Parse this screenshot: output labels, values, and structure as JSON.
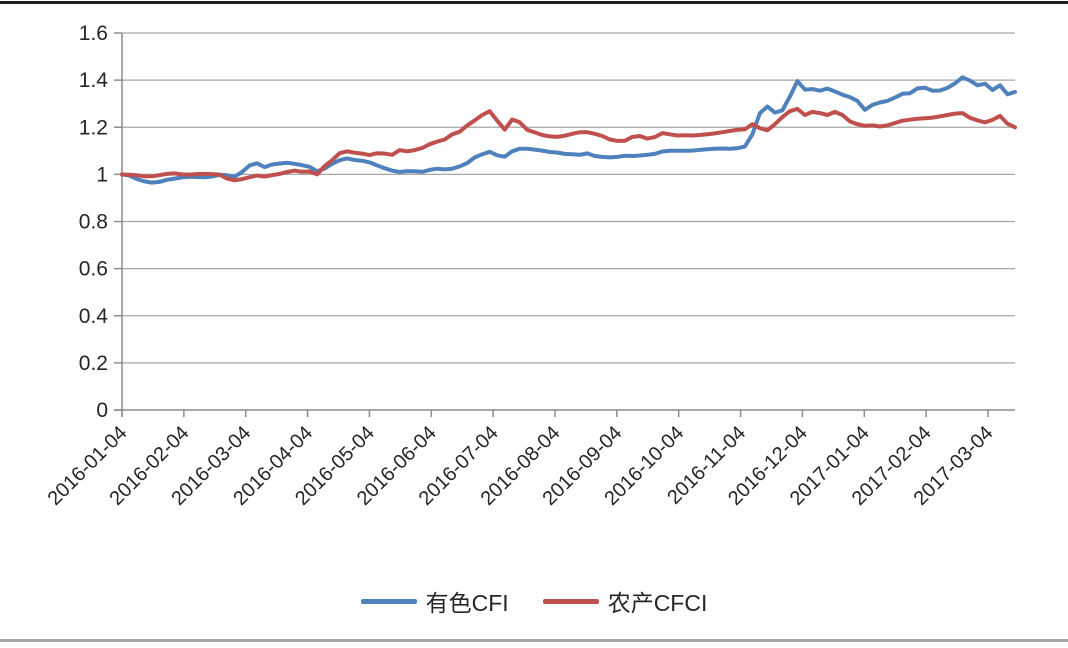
{
  "chart_data": {
    "type": "line",
    "title": "",
    "xlabel": "",
    "ylabel": "",
    "ylim": [
      0,
      1.6
    ],
    "y_tick_step": 0.2,
    "y_tick_labels": [
      "0",
      "0.2",
      "0.4",
      "0.6",
      "0.8",
      "1",
      "1.2",
      "1.4",
      "1.6"
    ],
    "x_tick_labels": [
      "2016-01-04",
      "2016-02-04",
      "2016-03-04",
      "2016-04-04",
      "2016-05-04",
      "2016-06-04",
      "2016-07-04",
      "2016-08-04",
      "2016-09-04",
      "2016-10-04",
      "2016-11-04",
      "2016-12-04",
      "2017-01-04",
      "2017-02-04",
      "2017-03-04"
    ],
    "x_axis_note": "daily index data from 2016-01-04 extending ~2 weeks past 2017-03-04; series sampled at 120 evenly spaced points",
    "grid": "horizontal",
    "legend_position": "bottom",
    "series": [
      {
        "name": "有色CFI",
        "color": "#4F81BD",
        "values": [
          1.0,
          0.995,
          0.98,
          0.97,
          0.965,
          0.968,
          0.977,
          0.982,
          0.987,
          0.99,
          0.989,
          0.988,
          0.991,
          0.998,
          0.996,
          0.99,
          1.01,
          1.038,
          1.047,
          1.031,
          1.042,
          1.046,
          1.049,
          1.045,
          1.039,
          1.032,
          1.013,
          1.025,
          1.045,
          1.06,
          1.068,
          1.061,
          1.058,
          1.051,
          1.038,
          1.026,
          1.016,
          1.01,
          1.014,
          1.013,
          1.011,
          1.019,
          1.024,
          1.021,
          1.024,
          1.034,
          1.048,
          1.072,
          1.085,
          1.096,
          1.081,
          1.075,
          1.098,
          1.109,
          1.109,
          1.105,
          1.101,
          1.095,
          1.093,
          1.087,
          1.085,
          1.083,
          1.089,
          1.078,
          1.074,
          1.072,
          1.074,
          1.079,
          1.078,
          1.08,
          1.083,
          1.087,
          1.097,
          1.1,
          1.1,
          1.1,
          1.101,
          1.104,
          1.107,
          1.109,
          1.11,
          1.109,
          1.111,
          1.118,
          1.17,
          1.26,
          1.288,
          1.262,
          1.272,
          1.33,
          1.396,
          1.36,
          1.362,
          1.355,
          1.364,
          1.352,
          1.338,
          1.328,
          1.312,
          1.274,
          1.295,
          1.305,
          1.312,
          1.326,
          1.342,
          1.344,
          1.365,
          1.368,
          1.355,
          1.356,
          1.367,
          1.386,
          1.412,
          1.398,
          1.378,
          1.385,
          1.358,
          1.378,
          1.34,
          1.35
        ]
      },
      {
        "name": "农产CFCI",
        "color": "#C0504D",
        "values": [
          1.0,
          0.998,
          0.996,
          0.992,
          0.992,
          0.997,
          1.002,
          1.004,
          1.0,
          0.999,
          1.001,
          1.002,
          1.001,
          0.999,
          0.982,
          0.975,
          0.98,
          0.988,
          0.995,
          0.991,
          0.997,
          1.002,
          1.01,
          1.016,
          1.011,
          1.012,
          1.0,
          1.035,
          1.06,
          1.09,
          1.098,
          1.092,
          1.088,
          1.082,
          1.09,
          1.088,
          1.083,
          1.103,
          1.098,
          1.103,
          1.112,
          1.128,
          1.139,
          1.148,
          1.17,
          1.181,
          1.208,
          1.229,
          1.252,
          1.268,
          1.228,
          1.19,
          1.233,
          1.221,
          1.189,
          1.178,
          1.167,
          1.161,
          1.159,
          1.164,
          1.172,
          1.179,
          1.179,
          1.172,
          1.163,
          1.148,
          1.142,
          1.142,
          1.159,
          1.163,
          1.152,
          1.158,
          1.175,
          1.17,
          1.165,
          1.166,
          1.165,
          1.167,
          1.17,
          1.174,
          1.179,
          1.184,
          1.189,
          1.191,
          1.213,
          1.196,
          1.187,
          1.213,
          1.243,
          1.268,
          1.278,
          1.252,
          1.265,
          1.26,
          1.252,
          1.265,
          1.252,
          1.225,
          1.213,
          1.206,
          1.208,
          1.203,
          1.208,
          1.218,
          1.228,
          1.232,
          1.236,
          1.238,
          1.241,
          1.246,
          1.252,
          1.258,
          1.26,
          1.24,
          1.229,
          1.221,
          1.231,
          1.248,
          1.215,
          1.2
        ]
      }
    ]
  },
  "colors": {
    "background": "#FFFFFF",
    "gridline": "#A6A6A6",
    "axis": "#8C8C8C",
    "tick_text": "#262626",
    "top_border": "#1F1F1F",
    "bottom_border": "#A6A6A6"
  }
}
